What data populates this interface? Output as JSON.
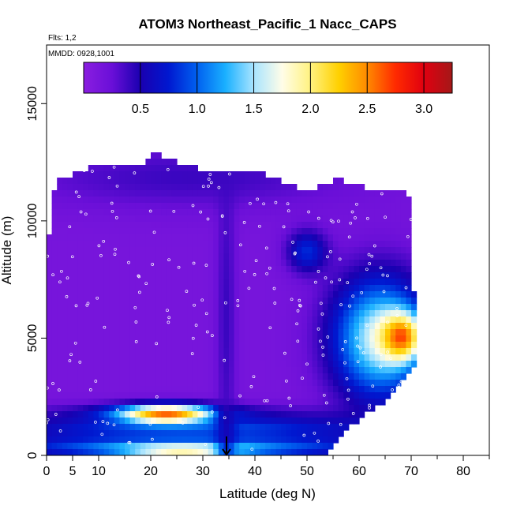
{
  "chart_data": {
    "type": "heatmap",
    "title": "ATOM3 Northeast_Pacific_1 Nacc_CAPS",
    "notes": [
      "Flts: 1,2",
      "MMDD: 0928,1001"
    ],
    "xlabel": "Latitude (deg N)",
    "ylabel": "Altitude (m)",
    "xlim": [
      0,
      85
    ],
    "ylim": [
      0,
      17500
    ],
    "x_ticks": [
      0,
      5,
      10,
      20,
      30,
      40,
      50,
      60,
      70,
      80
    ],
    "y_ticks": [
      0,
      5000,
      10000,
      15000
    ],
    "colorbar": {
      "range": [
        0,
        3.25
      ],
      "ticks": [
        0.5,
        1.0,
        1.5,
        2.0,
        2.5,
        3.0
      ],
      "tick_labels": [
        "0.5",
        "1.0",
        "1.5",
        "2.0",
        "2.5",
        "3.0"
      ],
      "stops": [
        "#8a1ee0",
        "#6a0fd8",
        "#1a00b0",
        "#0018d0",
        "#0060f0",
        "#1ab0ff",
        "#a8e4ff",
        "#fffde8",
        "#fff280",
        "#ffd000",
        "#ff8a00",
        "#ff2a00",
        "#e00010",
        "#a41818"
      ]
    },
    "background_value": 0.15,
    "profile_columns": [
      {
        "lat": 0,
        "top": 8000
      },
      {
        "lat": 1,
        "top": 11000
      },
      {
        "lat": 2,
        "top": 11800
      },
      {
        "lat": 5,
        "top": 12000
      },
      {
        "lat": 10,
        "top": 12400
      },
      {
        "lat": 19,
        "top": 12400
      },
      {
        "lat": 20,
        "top": 12900
      },
      {
        "lat": 27,
        "top": 12400
      },
      {
        "lat": 33,
        "top": 12000
      },
      {
        "lat": 42,
        "top": 12000
      },
      {
        "lat": 50,
        "top": 11200
      },
      {
        "lat": 56,
        "top": 11800
      },
      {
        "lat": 58,
        "top": 11500
      },
      {
        "lat": 68,
        "top": 11300
      },
      {
        "lat": 70,
        "top": 10800
      },
      {
        "lat": 70.5,
        "top": 7000
      },
      {
        "lat": 71,
        "top": 4000
      },
      {
        "lat": 67,
        "top": 2700
      },
      {
        "lat": 60,
        "top": 1500
      },
      {
        "lat": 57,
        "top": 1000
      },
      {
        "lat": 55,
        "top": 500
      },
      {
        "lat": 54,
        "top": 0
      }
    ],
    "features": [
      {
        "name": "low-level band",
        "lat": [
          1,
          54
        ],
        "alt": [
          0,
          700
        ],
        "value": 1.3
      },
      {
        "name": "near-surface plume",
        "lat": [
          18,
          34
        ],
        "alt": [
          0,
          450
        ],
        "value": 2.0
      },
      {
        "name": "boundary layer band",
        "lat": [
          1,
          55
        ],
        "alt": [
          700,
          1600
        ],
        "value": 1.0
      },
      {
        "name": "elevated layer",
        "lat": [
          4,
          42
        ],
        "alt": [
          1400,
          2100
        ],
        "value": 0.6
      },
      {
        "name": "elevated plume",
        "lat": [
          16,
          30
        ],
        "alt": [
          1450,
          2050
        ],
        "value": 2.6
      },
      {
        "name": "vertical column",
        "lat": [
          33,
          36
        ],
        "alt": [
          0,
          12000
        ],
        "value": 0.4
      },
      {
        "name": "mid-altitude patch",
        "lat": [
          47,
          53
        ],
        "alt": [
          8000,
          9400
        ],
        "value": 0.8
      },
      {
        "name": "northern outflow",
        "lat": [
          57,
          71
        ],
        "alt": [
          3000,
          7000
        ],
        "value": 1.6
      },
      {
        "name": "northern plume core",
        "lat": [
          65,
          71
        ],
        "alt": [
          4300,
          5800
        ],
        "value": 2.7
      },
      {
        "name": "upper layer",
        "lat": [
          2,
          53
        ],
        "alt": [
          10800,
          12900
        ],
        "value": 0.4
      }
    ]
  }
}
